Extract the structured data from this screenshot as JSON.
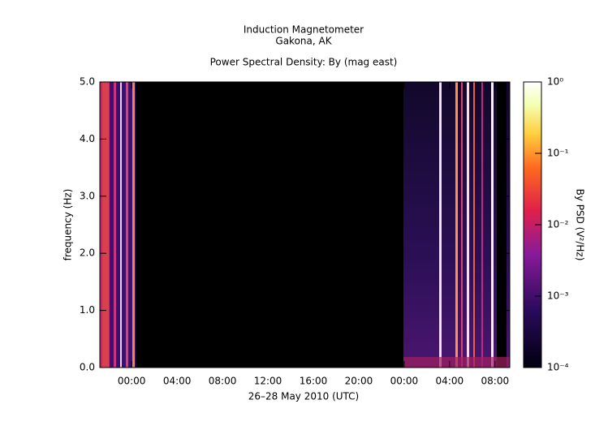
{
  "chart_data": {
    "type": "spectrogram",
    "title": "Induction Magnetometer",
    "subtitle": "Gakona, AK",
    "plot_title": "Power Spectral Density: By (mag east)",
    "xlabel": "26–28 May 2010 (UTC)",
    "ylabel": "frequency (Hz)",
    "xlim": [
      -2.8,
      33.3
    ],
    "xticks": [
      {
        "value": 0,
        "label": "00:00"
      },
      {
        "value": 4,
        "label": "04:00"
      },
      {
        "value": 8,
        "label": "08:00"
      },
      {
        "value": 12,
        "label": "12:00"
      },
      {
        "value": 16,
        "label": "16:00"
      },
      {
        "value": 20,
        "label": "20:00"
      },
      {
        "value": 24,
        "label": "00:00"
      },
      {
        "value": 28,
        "label": "04:00"
      },
      {
        "value": 32,
        "label": "08:00"
      }
    ],
    "ylim": [
      0,
      5
    ],
    "yticks": [
      {
        "value": 0,
        "label": "0.0"
      },
      {
        "value": 1,
        "label": "1.0"
      },
      {
        "value": 2,
        "label": "2.0"
      },
      {
        "value": 3,
        "label": "3.0"
      },
      {
        "value": 4,
        "label": "4.0"
      },
      {
        "value": 5,
        "label": "5.0"
      }
    ],
    "colorbar": {
      "label": "By PSD (V²/Hz)",
      "log_scale": true,
      "lim": [
        0.0001,
        1
      ],
      "ticks": [
        {
          "value": 0.0001,
          "label": "10⁻⁴"
        },
        {
          "value": 0.001,
          "label": "10⁻³"
        },
        {
          "value": 0.01,
          "label": "10⁻²"
        },
        {
          "value": 0.1,
          "label": "10⁻¹"
        },
        {
          "value": 1,
          "label": "10⁰"
        }
      ]
    }
  }
}
